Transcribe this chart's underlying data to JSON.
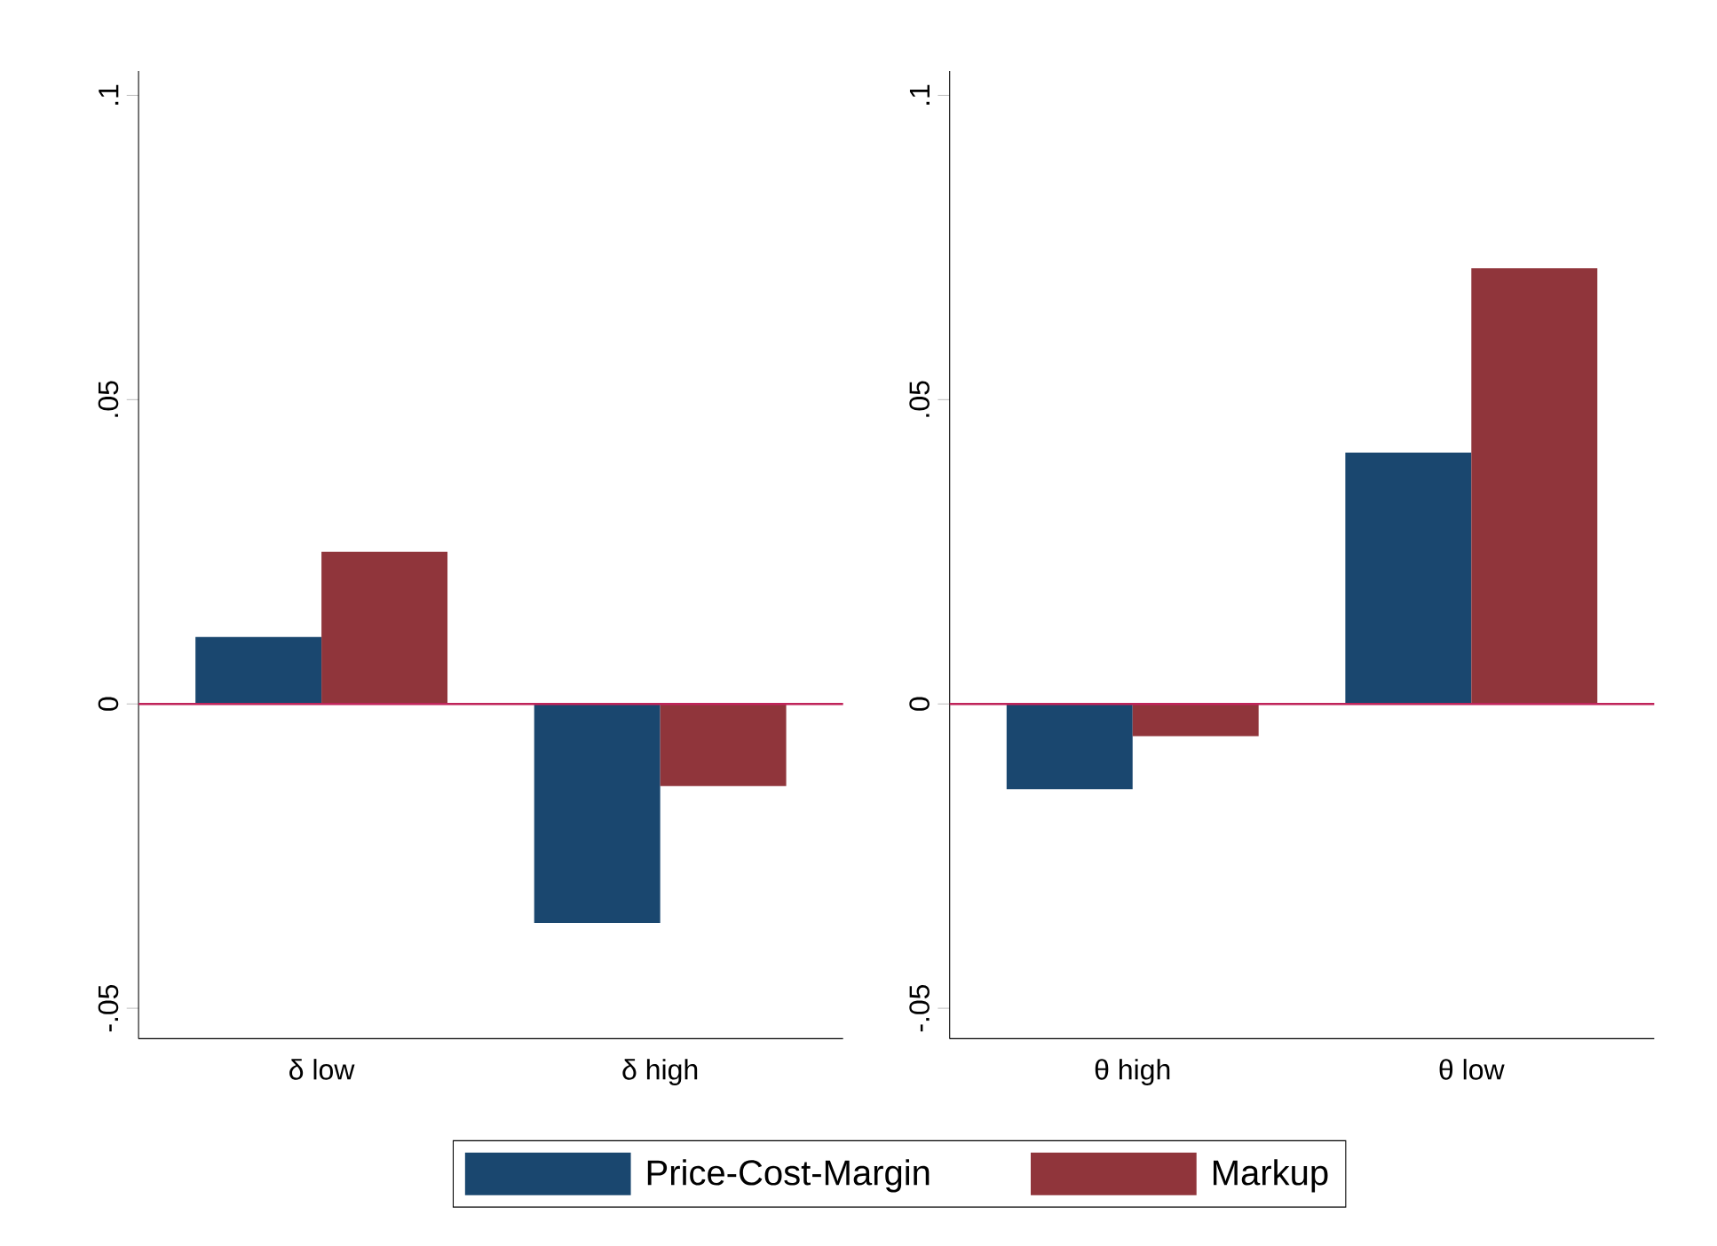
{
  "chart_data": [
    {
      "type": "bar",
      "categories": [
        "δ low",
        "δ high"
      ],
      "series": [
        {
          "name": "Price-Cost-Margin",
          "color": "#1a476f",
          "values": [
            0.011,
            -0.036
          ]
        },
        {
          "name": "Markup",
          "color": "#90353b",
          "values": [
            0.025,
            -0.0135
          ]
        }
      ],
      "ylim": [
        -0.055,
        0.104
      ],
      "yticks": [
        {
          "value": -0.05,
          "label": "-.05"
        },
        {
          "value": 0,
          "label": "0"
        },
        {
          "value": 0.05,
          "label": ".05"
        },
        {
          "value": 0.1,
          "label": ".1"
        }
      ],
      "ref_lines": [
        {
          "axis": "y",
          "value": 0,
          "color": "#c0245a"
        }
      ],
      "grid": false,
      "legend": "bottom"
    },
    {
      "type": "bar",
      "categories": [
        "θ high",
        "θ low"
      ],
      "series": [
        {
          "color": "#1a476f",
          "values": [
            -0.014,
            0.0413
          ]
        },
        {
          "color": "#90353b",
          "values": [
            -0.0053,
            0.0716
          ]
        }
      ],
      "ylim": [
        -0.055,
        0.104
      ],
      "yticks": [
        {
          "value": -0.05,
          "label": "-.05"
        },
        {
          "value": 0,
          "label": "0"
        },
        {
          "value": 0.05,
          "label": ".05"
        },
        {
          "value": 0.1,
          "label": ".1"
        }
      ],
      "ref_lines": [
        {
          "axis": "y",
          "value": 0,
          "color": "#c0245a"
        }
      ],
      "grid": false,
      "legend": false
    }
  ]
}
